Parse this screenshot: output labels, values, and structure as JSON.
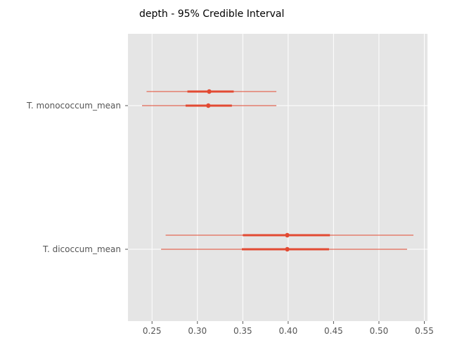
{
  "chart_data": {
    "type": "forest",
    "title": "depth - 95% Credible Interval",
    "xlabel": "",
    "ylabel": "",
    "xlim": [
      0.2235,
      0.5535
    ],
    "xticks": [
      0.25,
      0.3,
      0.35,
      0.4,
      0.45,
      0.5,
      0.55
    ],
    "xtick_labels": [
      "0.25",
      "0.30",
      "0.35",
      "0.40",
      "0.45",
      "0.50",
      "0.55"
    ],
    "grid": true,
    "style": "ggplot",
    "colors": {
      "background": "#E5E5E5",
      "grid": "#FFFFFF",
      "series": "#E24A33"
    },
    "categories": [
      {
        "label": "T. monococcum_mean",
        "chains": [
          {
            "mean": 0.313,
            "hdi_50": [
              0.289,
              0.34
            ],
            "hdi_95": [
              0.244,
              0.387
            ]
          },
          {
            "mean": 0.312,
            "hdi_50": [
              0.287,
              0.338
            ],
            "hdi_95": [
              0.239,
              0.387
            ]
          }
        ]
      },
      {
        "label": "T. dicoccum_mean",
        "chains": [
          {
            "mean": 0.399,
            "hdi_50": [
              0.35,
              0.446
            ],
            "hdi_95": [
              0.265,
              0.538
            ]
          },
          {
            "mean": 0.399,
            "hdi_50": [
              0.349,
              0.445
            ],
            "hdi_95": [
              0.26,
              0.531
            ]
          }
        ]
      }
    ]
  }
}
